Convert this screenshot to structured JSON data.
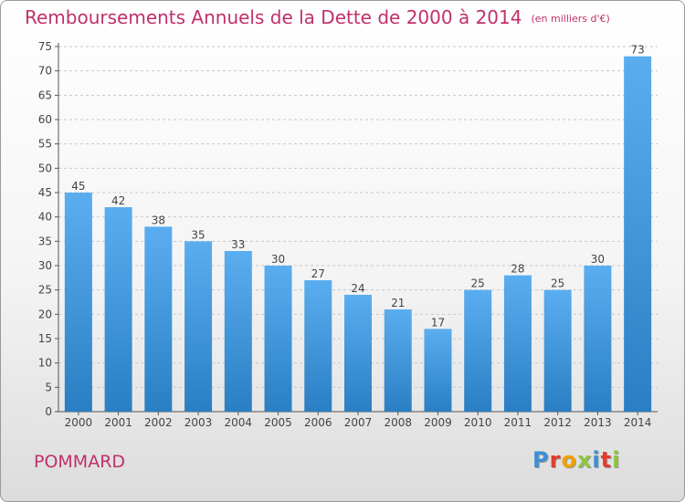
{
  "title": "Remboursements Annuels de la Dette de 2000 à 2014",
  "unit": "(en milliers d'€)",
  "commune": "POMMARD",
  "logo": {
    "text": "Proxiti",
    "colors": [
      "#3d8fd6",
      "#e63a2e",
      "#f2a000",
      "#8cc63f",
      "#3d8fd6",
      "#e63a2e",
      "#8cc63f"
    ]
  },
  "colors": {
    "title": "#c0306a",
    "bar_light": "#5aaef0",
    "bar_dark": "#2a7ec3",
    "axis": "#555555"
  },
  "chart_data": {
    "type": "bar",
    "title": "Remboursements Annuels de la Dette de 2000 à 2014",
    "xlabel": "",
    "ylabel": "",
    "categories": [
      "2000",
      "2001",
      "2002",
      "2003",
      "2004",
      "2005",
      "2006",
      "2007",
      "2008",
      "2009",
      "2010",
      "2011",
      "2012",
      "2013",
      "2014"
    ],
    "values": [
      45,
      42,
      38,
      35,
      33,
      30,
      27,
      24,
      21,
      17,
      25,
      28,
      25,
      30,
      73
    ],
    "ylim": [
      0,
      75
    ],
    "yticks": [
      0,
      5,
      10,
      15,
      20,
      25,
      30,
      35,
      40,
      45,
      50,
      55,
      60,
      65,
      70,
      75
    ],
    "grid": "horizontal dashed",
    "data_labels": true
  }
}
